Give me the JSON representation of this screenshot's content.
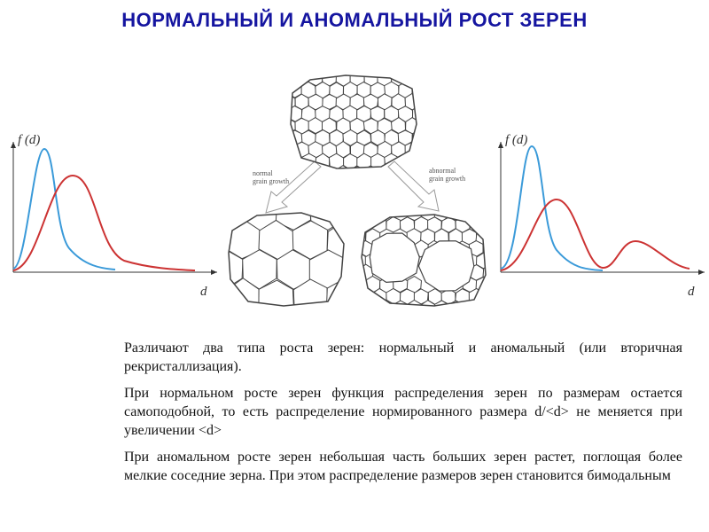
{
  "title": "НОРМАЛЬНЫЙ И АНОМАЛЬНЫЙ РОСТ ЗЕРЕН",
  "left_plot": {
    "y_label": "f (d)",
    "x_label": "d"
  },
  "right_plot": {
    "y_label": "f (d)",
    "x_label": "d"
  },
  "diagram": {
    "normal_label": [
      "normal",
      "grain growth"
    ],
    "abnormal_label": [
      "abnormal",
      "grain growth"
    ]
  },
  "paragraphs": [
    "Различают два типа роста зерен: нормальный и аномальный (или вторичная рекристаллизация).",
    "При нормальном росте зерен функция распределения зерен по размерам остается самоподобной, то есть распределение нормированного размера d/<d> не меняется при увеличении <d>",
    "При аномальном росте зерен небольшая часть больших зерен растет, поглощая более мелкие соседние зерна. При этом распределение размеров зерен становится бимодальным"
  ]
}
